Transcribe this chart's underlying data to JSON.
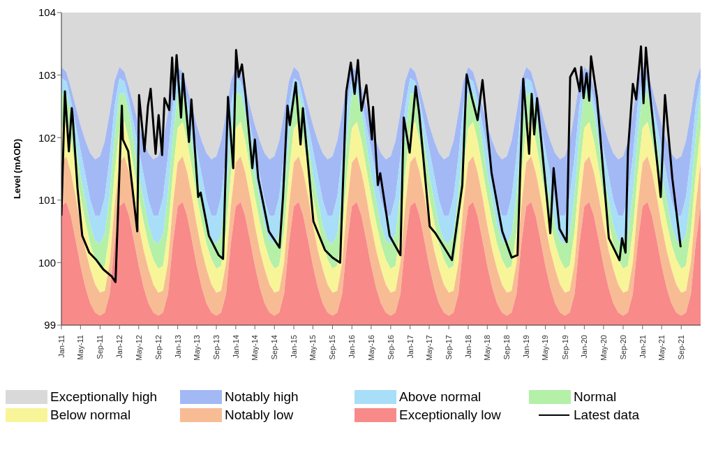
{
  "chart_data": {
    "type": "area",
    "ylabel": "Level (mAOD)",
    "legend": "bottom",
    "x": [
      "2011-01",
      "2011-02",
      "2011-03",
      "2011-04",
      "2011-05",
      "2011-06",
      "2011-07",
      "2011-08",
      "2011-09",
      "2011-10",
      "2011-11",
      "2011-12",
      "2012-01",
      "2012-02",
      "2012-03",
      "2012-04",
      "2012-05",
      "2012-06",
      "2012-07",
      "2012-08",
      "2012-09",
      "2012-10",
      "2012-11",
      "2012-12",
      "2013-01",
      "2013-02",
      "2013-03",
      "2013-04",
      "2013-05",
      "2013-06",
      "2013-07",
      "2013-08",
      "2013-09",
      "2013-10",
      "2013-11",
      "2013-12",
      "2014-01",
      "2014-02",
      "2014-03",
      "2014-04",
      "2014-05",
      "2014-06",
      "2014-07",
      "2014-08",
      "2014-09",
      "2014-10",
      "2014-11",
      "2014-12",
      "2015-01",
      "2015-02",
      "2015-03",
      "2015-04",
      "2015-05",
      "2015-06",
      "2015-07",
      "2015-08",
      "2015-09",
      "2015-10",
      "2015-11",
      "2015-12",
      "2016-01",
      "2016-02",
      "2016-03",
      "2016-04",
      "2016-05",
      "2016-06",
      "2016-07",
      "2016-08",
      "2016-09",
      "2016-10",
      "2016-11",
      "2016-12",
      "2017-01",
      "2017-02",
      "2017-03",
      "2017-04",
      "2017-05",
      "2017-06",
      "2017-07",
      "2017-08",
      "2017-09",
      "2017-10",
      "2017-11",
      "2017-12",
      "2018-01",
      "2018-02",
      "2018-03",
      "2018-04",
      "2018-05",
      "2018-06",
      "2018-07",
      "2018-08",
      "2018-09",
      "2018-10",
      "2018-11",
      "2018-12",
      "2019-01",
      "2019-02",
      "2019-03",
      "2019-04",
      "2019-05",
      "2019-06",
      "2019-07",
      "2019-08",
      "2019-09",
      "2019-10",
      "2019-11",
      "2019-12",
      "2020-01",
      "2020-02",
      "2020-03",
      "2020-04",
      "2020-05",
      "2020-06",
      "2020-07",
      "2020-08",
      "2020-09",
      "2020-10",
      "2020-11",
      "2020-12",
      "2021-01",
      "2021-02",
      "2021-03",
      "2021-04",
      "2021-05",
      "2021-06",
      "2021-07",
      "2021-08",
      "2021-09",
      "2021-10",
      "2021-11",
      "2021-12",
      "2022-01"
    ],
    "series": [
      {
        "name": "Exceptionally high",
        "color": "#d9d9d9",
        "values": [
          104,
          104,
          104,
          104,
          104,
          104,
          104,
          104,
          104,
          104,
          104,
          104,
          104,
          104,
          104,
          104,
          104,
          104,
          104,
          104,
          104,
          104,
          104,
          104,
          104,
          104,
          104,
          104,
          104,
          104,
          104,
          104,
          104,
          104,
          104,
          104,
          104,
          104,
          104,
          104,
          104,
          104,
          104,
          104,
          104,
          104,
          104,
          104,
          104,
          104,
          104,
          104,
          104,
          104,
          104,
          104,
          104,
          104,
          104,
          104,
          104,
          104,
          104,
          104,
          104,
          104,
          104,
          104,
          104,
          104,
          104,
          104,
          104,
          104,
          104,
          104,
          104,
          104,
          104,
          104,
          104,
          104,
          104,
          104,
          104,
          104,
          104,
          104,
          104,
          104,
          104,
          104,
          104,
          104,
          104,
          104,
          104,
          104,
          104,
          104,
          104,
          104,
          104,
          104,
          104,
          104,
          104,
          104,
          104,
          104,
          104,
          104,
          104,
          104,
          104,
          104,
          104,
          104,
          104,
          104,
          104,
          104,
          104,
          104,
          104,
          104,
          104,
          104,
          104,
          104,
          104,
          104,
          104
        ]
      },
      {
        "name": "Notably high",
        "color": "#a3b9f5",
        "values": [
          103.13,
          103.05,
          102.8,
          102.5,
          102.2,
          101.95,
          101.75,
          101.65,
          101.7,
          101.95,
          102.4,
          102.9,
          103.13,
          103.05,
          102.8,
          102.5,
          102.2,
          101.95,
          101.75,
          101.65,
          101.7,
          101.95,
          102.4,
          102.9,
          103.13,
          103.05,
          102.8,
          102.5,
          102.2,
          101.95,
          101.75,
          101.65,
          101.7,
          101.95,
          102.4,
          102.9,
          103.13,
          103.05,
          102.8,
          102.5,
          102.2,
          101.95,
          101.75,
          101.65,
          101.7,
          101.95,
          102.4,
          102.9,
          103.13,
          103.05,
          102.8,
          102.5,
          102.2,
          101.95,
          101.75,
          101.65,
          101.7,
          101.95,
          102.4,
          102.9,
          103.13,
          103.05,
          102.8,
          102.5,
          102.2,
          101.95,
          101.75,
          101.65,
          101.7,
          101.95,
          102.4,
          102.9,
          103.13,
          103.05,
          102.8,
          102.5,
          102.2,
          101.95,
          101.75,
          101.65,
          101.7,
          101.95,
          102.4,
          102.9,
          103.13,
          103.05,
          102.8,
          102.5,
          102.2,
          101.95,
          101.75,
          101.65,
          101.7,
          101.95,
          102.4,
          102.9,
          103.13,
          103.05,
          102.8,
          102.5,
          102.2,
          101.95,
          101.75,
          101.65,
          101.7,
          101.95,
          102.4,
          102.9,
          103.13,
          103.05,
          102.8,
          102.5,
          102.2,
          101.95,
          101.75,
          101.65,
          101.7,
          101.95,
          102.4,
          102.9,
          103.13,
          103.05,
          102.8,
          102.5,
          102.2,
          101.95,
          101.75,
          101.65,
          101.7,
          101.95,
          102.4,
          102.9,
          103.13
        ]
      },
      {
        "name": "Above normal",
        "color": "#a8def7",
        "values": [
          102.95,
          102.9,
          102.6,
          102.2,
          101.8,
          101.4,
          101.0,
          100.75,
          100.75,
          101.05,
          101.7,
          102.5,
          102.95,
          102.9,
          102.6,
          102.2,
          101.8,
          101.4,
          101.0,
          100.75,
          100.75,
          101.05,
          101.7,
          102.5,
          102.95,
          102.9,
          102.6,
          102.2,
          101.8,
          101.4,
          101.0,
          100.75,
          100.75,
          101.05,
          101.7,
          102.5,
          102.95,
          102.9,
          102.6,
          102.2,
          101.8,
          101.4,
          101.0,
          100.75,
          100.75,
          101.05,
          101.7,
          102.5,
          102.95,
          102.9,
          102.6,
          102.2,
          101.8,
          101.4,
          101.0,
          100.75,
          100.75,
          101.05,
          101.7,
          102.5,
          102.95,
          102.9,
          102.6,
          102.2,
          101.8,
          101.4,
          101.0,
          100.75,
          100.75,
          101.05,
          101.7,
          102.5,
          102.95,
          102.9,
          102.6,
          102.2,
          101.8,
          101.4,
          101.0,
          100.75,
          100.75,
          101.05,
          101.7,
          102.5,
          102.95,
          102.9,
          102.6,
          102.2,
          101.8,
          101.4,
          101.0,
          100.75,
          100.75,
          101.05,
          101.7,
          102.5,
          102.95,
          102.9,
          102.6,
          102.2,
          101.8,
          101.4,
          101.0,
          100.75,
          100.75,
          101.05,
          101.7,
          102.5,
          102.95,
          102.9,
          102.6,
          102.2,
          101.8,
          101.4,
          101.0,
          100.75,
          100.75,
          101.05,
          101.7,
          102.5,
          102.95,
          102.9,
          102.6,
          102.2,
          101.8,
          101.4,
          101.0,
          100.75,
          100.75,
          101.05,
          101.7,
          102.5,
          102.95
        ]
      },
      {
        "name": "Normal",
        "color": "#b4f0a8",
        "values": [
          102.7,
          102.7,
          102.4,
          101.9,
          101.4,
          101.0,
          100.6,
          100.35,
          100.3,
          100.45,
          101.1,
          102.0,
          102.7,
          102.7,
          102.4,
          101.9,
          101.4,
          101.0,
          100.6,
          100.35,
          100.3,
          100.45,
          101.1,
          102.0,
          102.7,
          102.7,
          102.4,
          101.9,
          101.4,
          101.0,
          100.6,
          100.35,
          100.3,
          100.45,
          101.1,
          102.0,
          102.7,
          102.7,
          102.4,
          101.9,
          101.4,
          101.0,
          100.6,
          100.35,
          100.3,
          100.45,
          101.1,
          102.0,
          102.7,
          102.7,
          102.4,
          101.9,
          101.4,
          101.0,
          100.6,
          100.35,
          100.3,
          100.45,
          101.1,
          102.0,
          102.7,
          102.7,
          102.4,
          101.9,
          101.4,
          101.0,
          100.6,
          100.35,
          100.3,
          100.45,
          101.1,
          102.0,
          102.7,
          102.7,
          102.4,
          101.9,
          101.4,
          101.0,
          100.6,
          100.35,
          100.3,
          100.45,
          101.1,
          102.0,
          102.7,
          102.7,
          102.4,
          101.9,
          101.4,
          101.0,
          100.6,
          100.35,
          100.3,
          100.45,
          101.1,
          102.0,
          102.7,
          102.7,
          102.4,
          101.9,
          101.4,
          101.0,
          100.6,
          100.35,
          100.3,
          100.45,
          101.1,
          102.0,
          102.7,
          102.7,
          102.4,
          101.9,
          101.4,
          101.0,
          100.6,
          100.35,
          100.3,
          100.45,
          101.1,
          102.0,
          102.7,
          102.7,
          102.4,
          101.9,
          101.4,
          101.0,
          100.6,
          100.35,
          100.3,
          100.45,
          101.1,
          102.0,
          102.7
        ]
      },
      {
        "name": "Below normal",
        "color": "#f8f598",
        "values": [
          102.15,
          102.25,
          101.95,
          101.5,
          101.05,
          100.65,
          100.3,
          100.05,
          99.9,
          99.95,
          100.5,
          101.4,
          102.15,
          102.25,
          101.95,
          101.5,
          101.05,
          100.65,
          100.3,
          100.05,
          99.9,
          99.95,
          100.5,
          101.4,
          102.15,
          102.25,
          101.95,
          101.5,
          101.05,
          100.65,
          100.3,
          100.05,
          99.9,
          99.95,
          100.5,
          101.4,
          102.15,
          102.25,
          101.95,
          101.5,
          101.05,
          100.65,
          100.3,
          100.05,
          99.9,
          99.95,
          100.5,
          101.4,
          102.15,
          102.25,
          101.95,
          101.5,
          101.05,
          100.65,
          100.3,
          100.05,
          99.9,
          99.95,
          100.5,
          101.4,
          102.15,
          102.25,
          101.95,
          101.5,
          101.05,
          100.65,
          100.3,
          100.05,
          99.9,
          99.95,
          100.5,
          101.4,
          102.15,
          102.25,
          101.95,
          101.5,
          101.05,
          100.65,
          100.3,
          100.05,
          99.9,
          99.95,
          100.5,
          101.4,
          102.15,
          102.25,
          101.95,
          101.5,
          101.05,
          100.65,
          100.3,
          100.05,
          99.9,
          99.95,
          100.5,
          101.4,
          102.15,
          102.25,
          101.95,
          101.5,
          101.05,
          100.65,
          100.3,
          100.05,
          99.9,
          99.95,
          100.5,
          101.4,
          102.15,
          102.25,
          101.95,
          101.5,
          101.05,
          100.65,
          100.3,
          100.05,
          99.9,
          99.95,
          100.5,
          101.4,
          102.15,
          102.25,
          101.95,
          101.5,
          101.05,
          100.65,
          100.3,
          100.05,
          99.9,
          99.95,
          100.5,
          101.4,
          102.15
        ]
      },
      {
        "name": "Notably low",
        "color": "#f8bc95",
        "values": [
          101.6,
          101.7,
          101.45,
          101.05,
          100.6,
          100.2,
          99.9,
          99.65,
          99.52,
          99.55,
          100.0,
          100.9,
          101.6,
          101.7,
          101.45,
          101.05,
          100.6,
          100.2,
          99.9,
          99.65,
          99.52,
          99.55,
          100.0,
          100.9,
          101.6,
          101.7,
          101.45,
          101.05,
          100.6,
          100.2,
          99.9,
          99.65,
          99.52,
          99.55,
          100.0,
          100.9,
          101.6,
          101.7,
          101.45,
          101.05,
          100.6,
          100.2,
          99.9,
          99.65,
          99.52,
          99.55,
          100.0,
          100.9,
          101.6,
          101.7,
          101.45,
          101.05,
          100.6,
          100.2,
          99.9,
          99.65,
          99.52,
          99.55,
          100.0,
          100.9,
          101.6,
          101.7,
          101.45,
          101.05,
          100.6,
          100.2,
          99.9,
          99.65,
          99.52,
          99.55,
          100.0,
          100.9,
          101.6,
          101.7,
          101.45,
          101.05,
          100.6,
          100.2,
          99.9,
          99.65,
          99.52,
          99.55,
          100.0,
          100.9,
          101.6,
          101.7,
          101.45,
          101.05,
          100.6,
          100.2,
          99.9,
          99.65,
          99.52,
          99.55,
          100.0,
          100.9,
          101.6,
          101.7,
          101.45,
          101.05,
          100.6,
          100.2,
          99.9,
          99.65,
          99.52,
          99.55,
          100.0,
          100.9,
          101.6,
          101.7,
          101.45,
          101.05,
          100.6,
          100.2,
          99.9,
          99.65,
          99.52,
          99.55,
          100.0,
          100.9,
          101.6,
          101.7,
          101.45,
          101.05,
          100.6,
          100.2,
          99.9,
          99.65,
          99.52,
          99.55,
          100.0,
          100.9,
          101.6
        ]
      },
      {
        "name": "Exceptionally low",
        "color": "#f88a8a",
        "values": [
          100.9,
          100.97,
          100.75,
          100.35,
          99.95,
          99.6,
          99.35,
          99.2,
          99.15,
          99.2,
          99.5,
          100.3,
          100.9,
          100.97,
          100.75,
          100.35,
          99.95,
          99.6,
          99.35,
          99.2,
          99.15,
          99.2,
          99.5,
          100.3,
          100.9,
          100.97,
          100.75,
          100.35,
          99.95,
          99.6,
          99.35,
          99.2,
          99.15,
          99.2,
          99.5,
          100.3,
          100.9,
          100.97,
          100.75,
          100.35,
          99.95,
          99.6,
          99.35,
          99.2,
          99.15,
          99.2,
          99.5,
          100.3,
          100.9,
          100.97,
          100.75,
          100.35,
          99.95,
          99.6,
          99.35,
          99.2,
          99.15,
          99.2,
          99.5,
          100.3,
          100.9,
          100.97,
          100.75,
          100.35,
          99.95,
          99.6,
          99.35,
          99.2,
          99.15,
          99.2,
          99.5,
          100.3,
          100.9,
          100.97,
          100.75,
          100.35,
          99.95,
          99.6,
          99.35,
          99.2,
          99.15,
          99.2,
          99.5,
          100.3,
          100.9,
          100.97,
          100.75,
          100.35,
          99.95,
          99.6,
          99.35,
          99.2,
          99.15,
          99.2,
          99.5,
          100.3,
          100.9,
          100.97,
          100.75,
          100.35,
          99.95,
          99.6,
          99.35,
          99.2,
          99.15,
          99.2,
          99.5,
          100.3,
          100.9,
          100.97,
          100.75,
          100.35,
          99.95,
          99.6,
          99.35,
          99.2,
          99.15,
          99.2,
          99.5,
          100.3,
          100.9,
          100.97,
          100.75,
          100.35,
          99.95,
          99.6,
          99.35,
          99.2,
          99.15,
          99.2,
          99.5,
          100.3,
          100.9
        ]
      },
      {
        "name": "Latest data",
        "type": "line",
        "color": "#000000",
        "x": [
          "2011-01-01",
          "2011-01-23",
          "2011-02-17",
          "2011-03-07",
          "2011-03-12",
          "2011-04-12",
          "2011-05-12",
          "2011-06-25",
          "2011-08-09",
          "2011-09-22",
          "2011-11-13",
          "2011-12-07",
          "2012-01-16",
          "2012-01-22",
          "2012-02-25",
          "2012-04-22",
          "2012-05-03",
          "2012-06-06",
          "2012-06-28",
          "2012-07-15",
          "2012-08-15",
          "2012-09-03",
          "2012-09-25",
          "2012-10-10",
          "2012-11-09",
          "2012-11-27",
          "2012-12-09",
          "2012-12-25",
          "2013-01-22",
          "2013-02-03",
          "2013-03-13",
          "2013-03-28",
          "2013-05-10",
          "2013-05-25",
          "2013-07-16",
          "2013-09-15",
          "2013-10-13",
          "2013-11-13",
          "2013-12-16",
          "2014-01-03",
          "2014-01-19",
          "2014-02-09",
          "2014-03-01",
          "2014-04-15",
          "2014-05-01",
          "2014-05-22",
          "2014-07-28",
          "2014-10-03",
          "2014-10-25",
          "2014-11-22",
          "2014-12-07",
          "2015-01-13",
          "2015-02-12",
          "2015-02-27",
          "2015-05-04",
          "2015-07-16",
          "2015-09-01",
          "2015-10-19",
          "2015-11-27",
          "2015-12-25",
          "2016-01-18",
          "2016-02-08",
          "2016-03-01",
          "2016-04-01",
          "2016-05-06",
          "2016-05-13",
          "2016-06-12",
          "2016-06-27",
          "2016-08-25",
          "2016-11-01",
          "2016-11-22",
          "2016-12-29",
          "2017-02-05",
          "2017-02-27",
          "2017-05-04",
          "2017-06-09",
          "2017-09-21",
          "2017-11-25",
          "2017-12-22",
          "2018-01-25",
          "2018-03-01",
          "2018-04-01",
          "2018-05-28",
          "2018-08-03",
          "2018-10-01",
          "2018-11-07",
          "2018-12-13",
          "2019-01-19",
          "2019-02-04",
          "2019-02-20",
          "2019-03-10",
          "2019-06-01",
          "2019-06-22",
          "2019-07-29",
          "2019-09-12",
          "2019-10-04",
          "2019-11-03",
          "2019-12-03",
          "2019-12-13",
          "2019-12-27",
          "2020-01-15",
          "2020-02-01",
          "2020-02-12",
          "2020-03-21",
          "2020-06-03",
          "2020-08-09",
          "2020-08-25",
          "2020-09-16",
          "2020-10-01",
          "2020-11-01",
          "2020-11-22",
          "2020-12-22",
          "2021-01-07",
          "2021-01-22",
          "2021-02-12",
          "2021-04-25",
          "2021-05-22",
          "2021-07-07",
          "2021-08-28"
        ],
        "values": [
          100.76,
          102.74,
          101.78,
          102.47,
          102.36,
          101.2,
          100.43,
          100.16,
          100.04,
          99.89,
          99.78,
          99.69,
          102.51,
          101.97,
          101.78,
          100.5,
          102.68,
          101.78,
          102.51,
          102.78,
          101.74,
          102.36,
          101.72,
          102.63,
          102.44,
          103.28,
          102.61,
          103.32,
          102.32,
          103.02,
          101.93,
          102.61,
          101.05,
          101.12,
          100.43,
          100.12,
          100.06,
          102.65,
          101.51,
          103.4,
          102.97,
          103.17,
          102.74,
          101.51,
          101.97,
          101.35,
          100.5,
          100.24,
          101.05,
          102.51,
          102.2,
          102.88,
          101.89,
          102.47,
          100.66,
          100.2,
          100.08,
          100.0,
          102.74,
          103.2,
          102.7,
          103.24,
          102.43,
          102.84,
          101.97,
          102.49,
          101.24,
          101.43,
          100.43,
          100.12,
          102.32,
          101.76,
          102.82,
          102.39,
          100.58,
          100.47,
          100.04,
          101.24,
          103.01,
          102.63,
          102.28,
          102.92,
          101.43,
          100.5,
          100.08,
          100.12,
          102.94,
          101.74,
          102.7,
          102.05,
          102.63,
          100.47,
          101.51,
          100.54,
          100.33,
          102.97,
          103.11,
          102.74,
          103.13,
          102.63,
          103.03,
          102.59,
          103.3,
          102.63,
          100.39,
          100.04,
          100.39,
          100.16,
          101.78,
          102.86,
          102.61,
          103.46,
          102.55,
          103.44,
          102.82,
          101.05,
          102.68,
          101.35,
          100.26
        ]
      }
    ],
    "xlim": [
      "2011-01",
      "2022-01"
    ],
    "xticks": [
      {
        "value": "2011-01",
        "label": "Jan-11"
      },
      {
        "value": "2011-05",
        "label": "May-11"
      },
      {
        "value": "2011-09",
        "label": "Sep-11"
      },
      {
        "value": "2012-01",
        "label": "Jan-12"
      },
      {
        "value": "2012-05",
        "label": "May-12"
      },
      {
        "value": "2012-09",
        "label": "Sep-12"
      },
      {
        "value": "2013-01",
        "label": "Jan-13"
      },
      {
        "value": "2013-05",
        "label": "May-13"
      },
      {
        "value": "2013-09",
        "label": "Sep-13"
      },
      {
        "value": "2014-01",
        "label": "Jan-14"
      },
      {
        "value": "2014-05",
        "label": "May-14"
      },
      {
        "value": "2014-09",
        "label": "Sep-14"
      },
      {
        "value": "2015-01",
        "label": "Jan-15"
      },
      {
        "value": "2015-05",
        "label": "May-15"
      },
      {
        "value": "2015-09",
        "label": "Sep-15"
      },
      {
        "value": "2016-01",
        "label": "Jan-16"
      },
      {
        "value": "2016-05",
        "label": "May-16"
      },
      {
        "value": "2016-09",
        "label": "Sep-16"
      },
      {
        "value": "2017-01",
        "label": "Jan-17"
      },
      {
        "value": "2017-05",
        "label": "May-17"
      },
      {
        "value": "2017-09",
        "label": "Sep-17"
      },
      {
        "value": "2018-01",
        "label": "Jan-18"
      },
      {
        "value": "2018-05",
        "label": "May-18"
      },
      {
        "value": "2018-09",
        "label": "Sep-18"
      },
      {
        "value": "2019-01",
        "label": "Jan-19"
      },
      {
        "value": "2019-05",
        "label": "May-19"
      },
      {
        "value": "2019-09",
        "label": "Sep-19"
      },
      {
        "value": "2020-01",
        "label": "Jan-20"
      },
      {
        "value": "2020-05",
        "label": "May-20"
      },
      {
        "value": "2020-09",
        "label": "Sep-20"
      },
      {
        "value": "2021-01",
        "label": "Jan-21"
      },
      {
        "value": "2021-05",
        "label": "May-21"
      },
      {
        "value": "2021-09",
        "label": "Sep-21"
      }
    ],
    "ylim": [
      99,
      104
    ],
    "yticks": [
      99,
      100,
      101,
      102,
      103,
      104
    ]
  }
}
